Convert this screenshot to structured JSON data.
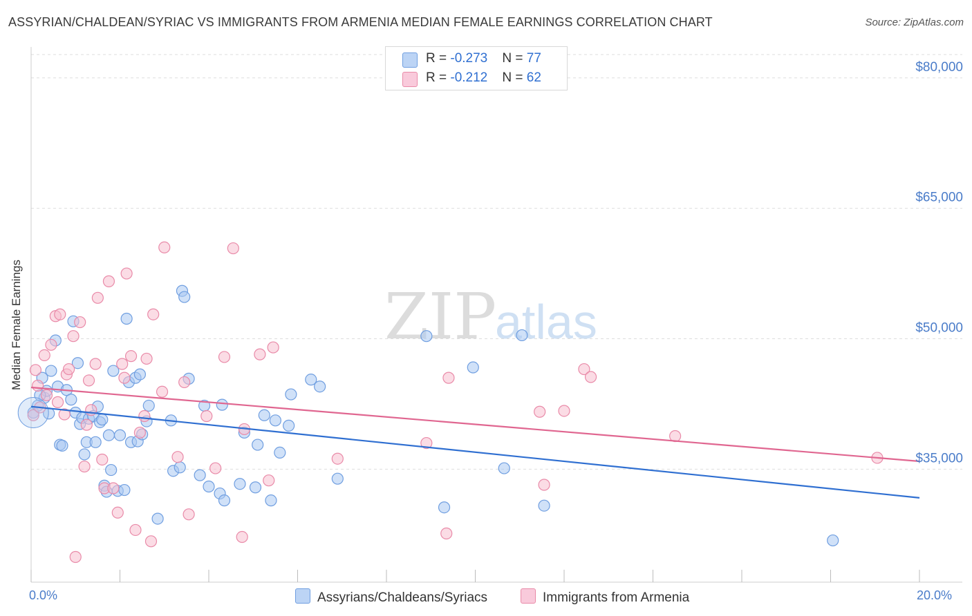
{
  "title": "ASSYRIAN/CHALDEAN/SYRIAC VS IMMIGRANTS FROM ARMENIA MEDIAN FEMALE EARNINGS CORRELATION CHART",
  "source": "Source: ZipAtlas.com",
  "watermark": {
    "zip": "ZIP",
    "atlas": "atlas"
  },
  "legend": {
    "series1": {
      "r_label": "R = ",
      "r_value": "-0.273",
      "n_label": "N = ",
      "n_value": "77"
    },
    "series2": {
      "r_label": "R = ",
      "r_value": "-0.212",
      "n_label": "N = ",
      "n_value": "62"
    }
  },
  "colors": {
    "blue_fill": "#a9c8f2",
    "blue_stroke": "#6f9ee0",
    "blue_line": "#2f6fd1",
    "pink_fill": "#f7bfd0",
    "pink_stroke": "#e98aa8",
    "pink_line": "#e06690",
    "grid": "#dddddd",
    "tick_label": "#4a7cc9"
  },
  "chart_data": {
    "type": "scatter",
    "title": "ASSYRIAN/CHALDEAN/SYRIAC VS IMMIGRANTS FROM ARMENIA MEDIAN FEMALE EARNINGS CORRELATION CHART",
    "xlabel": "",
    "ylabel": "Median Female Earnings",
    "xlim": [
      0,
      20
    ],
    "ylim": [
      22000,
      83000
    ],
    "x_tick_labels": [
      "0.0%",
      "20.0%"
    ],
    "y_ticks": [
      35000,
      50000,
      65000,
      80000
    ],
    "y_tick_labels": [
      "$35,000",
      "$50,000",
      "$65,000",
      "$80,000"
    ],
    "grid": true,
    "legend_position": "top-center",
    "series": [
      {
        "name": "Assyrians/Chaldeans/Syriacs",
        "color": "#a9c8f2",
        "trend": {
          "x": [
            0,
            20
          ],
          "y": [
            42200,
            31700
          ]
        },
        "points": [
          [
            0.05,
            41500
          ],
          [
            0.15,
            42300
          ],
          [
            0.25,
            45500
          ],
          [
            0.3,
            43200
          ],
          [
            0.35,
            44000
          ],
          [
            0.4,
            41400
          ],
          [
            0.45,
            46300
          ],
          [
            0.55,
            49800
          ],
          [
            0.6,
            44500
          ],
          [
            0.65,
            37800
          ],
          [
            0.7,
            37700
          ],
          [
            0.8,
            44100
          ],
          [
            0.9,
            43000
          ],
          [
            0.95,
            52000
          ],
          [
            1.0,
            41500
          ],
          [
            1.05,
            47200
          ],
          [
            1.1,
            40200
          ],
          [
            1.15,
            40900
          ],
          [
            1.2,
            36700
          ],
          [
            1.25,
            38100
          ],
          [
            1.3,
            40800
          ],
          [
            1.4,
            41100
          ],
          [
            1.45,
            38100
          ],
          [
            1.5,
            42200
          ],
          [
            1.55,
            40400
          ],
          [
            1.65,
            33100
          ],
          [
            1.7,
            32400
          ],
          [
            1.75,
            38900
          ],
          [
            1.8,
            34900
          ],
          [
            1.85,
            46300
          ],
          [
            1.95,
            32500
          ],
          [
            2.0,
            38900
          ],
          [
            2.1,
            32600
          ],
          [
            2.15,
            52300
          ],
          [
            2.2,
            45000
          ],
          [
            2.25,
            38100
          ],
          [
            2.35,
            45500
          ],
          [
            2.4,
            38200
          ],
          [
            2.45,
            45900
          ],
          [
            2.5,
            39000
          ],
          [
            2.6,
            40500
          ],
          [
            2.65,
            42300
          ],
          [
            2.85,
            29300
          ],
          [
            3.15,
            40600
          ],
          [
            3.2,
            34800
          ],
          [
            3.35,
            35200
          ],
          [
            3.4,
            55500
          ],
          [
            3.45,
            54800
          ],
          [
            3.55,
            45400
          ],
          [
            3.8,
            34300
          ],
          [
            3.9,
            42300
          ],
          [
            4.0,
            33000
          ],
          [
            4.25,
            32200
          ],
          [
            4.3,
            42400
          ],
          [
            4.35,
            31400
          ],
          [
            4.7,
            33300
          ],
          [
            4.8,
            39200
          ],
          [
            5.05,
            32900
          ],
          [
            5.1,
            37800
          ],
          [
            5.25,
            41200
          ],
          [
            5.4,
            31400
          ],
          [
            5.5,
            40600
          ],
          [
            5.6,
            36900
          ],
          [
            5.8,
            40000
          ],
          [
            5.85,
            43600
          ],
          [
            6.3,
            45300
          ],
          [
            6.5,
            44500
          ],
          [
            6.9,
            33900
          ],
          [
            8.9,
            50300
          ],
          [
            9.3,
            30600
          ],
          [
            9.95,
            46700
          ],
          [
            10.65,
            35100
          ],
          [
            11.05,
            50400
          ],
          [
            11.55,
            30800
          ],
          [
            18.05,
            26800
          ],
          [
            0.2,
            43500
          ],
          [
            1.6,
            40700
          ]
        ]
      },
      {
        "name": "Immigrants from Armenia",
        "color": "#f7bfd0",
        "trend": {
          "x": [
            0,
            20
          ],
          "y": [
            44400,
            35900
          ]
        },
        "points": [
          [
            0.05,
            41200
          ],
          [
            0.1,
            46400
          ],
          [
            0.15,
            44600
          ],
          [
            0.2,
            42100
          ],
          [
            0.3,
            48100
          ],
          [
            0.35,
            43500
          ],
          [
            0.45,
            49300
          ],
          [
            0.55,
            52600
          ],
          [
            0.6,
            42700
          ],
          [
            0.65,
            52800
          ],
          [
            0.75,
            41300
          ],
          [
            0.8,
            45900
          ],
          [
            0.85,
            46500
          ],
          [
            0.95,
            50300
          ],
          [
            1.0,
            24900
          ],
          [
            1.1,
            51900
          ],
          [
            1.2,
            35300
          ],
          [
            1.25,
            40100
          ],
          [
            1.3,
            45200
          ],
          [
            1.35,
            41800
          ],
          [
            1.45,
            47100
          ],
          [
            1.5,
            54700
          ],
          [
            1.6,
            36100
          ],
          [
            1.65,
            32800
          ],
          [
            1.75,
            56600
          ],
          [
            1.85,
            32800
          ],
          [
            1.95,
            30000
          ],
          [
            2.05,
            47100
          ],
          [
            2.1,
            45500
          ],
          [
            2.15,
            57500
          ],
          [
            2.25,
            48000
          ],
          [
            2.35,
            28000
          ],
          [
            2.45,
            39200
          ],
          [
            2.55,
            41100
          ],
          [
            2.6,
            47700
          ],
          [
            2.7,
            26700
          ],
          [
            2.75,
            52800
          ],
          [
            2.95,
            43900
          ],
          [
            3.0,
            60500
          ],
          [
            3.3,
            36400
          ],
          [
            3.45,
            45000
          ],
          [
            3.55,
            29800
          ],
          [
            3.95,
            41100
          ],
          [
            4.15,
            35100
          ],
          [
            4.35,
            47900
          ],
          [
            4.55,
            60400
          ],
          [
            4.75,
            27200
          ],
          [
            4.8,
            39600
          ],
          [
            5.15,
            48200
          ],
          [
            5.35,
            33700
          ],
          [
            5.45,
            49000
          ],
          [
            6.9,
            36200
          ],
          [
            8.9,
            38000
          ],
          [
            9.35,
            27600
          ],
          [
            9.4,
            45500
          ],
          [
            11.45,
            41600
          ],
          [
            11.55,
            33200
          ],
          [
            12.0,
            41700
          ],
          [
            12.45,
            46500
          ],
          [
            12.6,
            45600
          ],
          [
            14.5,
            38800
          ],
          [
            19.05,
            36300
          ]
        ]
      }
    ]
  },
  "x_axis": {
    "left_label": "0.0%",
    "right_label": "20.0%"
  },
  "y_axis": {
    "label": "Median Female Earnings"
  }
}
